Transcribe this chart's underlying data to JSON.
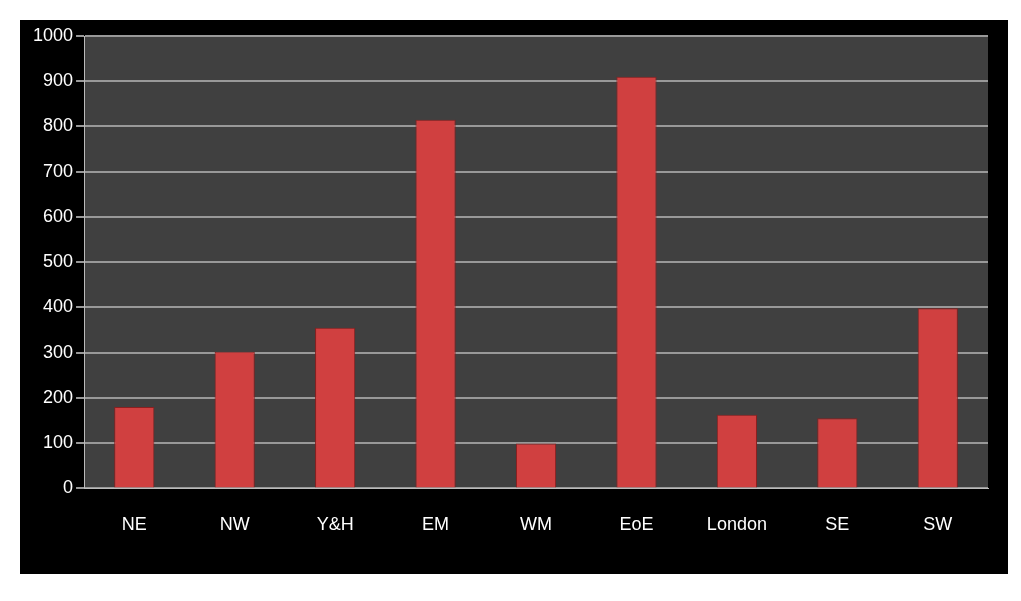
{
  "chart_data": {
    "type": "bar",
    "categories": [
      "NE",
      "NW",
      "Y&H",
      "EM",
      "WM",
      "EoE",
      "London",
      "SE",
      "SW"
    ],
    "values": [
      180,
      302,
      355,
      815,
      99,
      910,
      163,
      155,
      398
    ],
    "color": "#d04040",
    "ylim": [
      0,
      1000
    ],
    "yticks": [
      0,
      100,
      200,
      300,
      400,
      500,
      600,
      700,
      800,
      900,
      1000
    ],
    "grid": "y"
  }
}
